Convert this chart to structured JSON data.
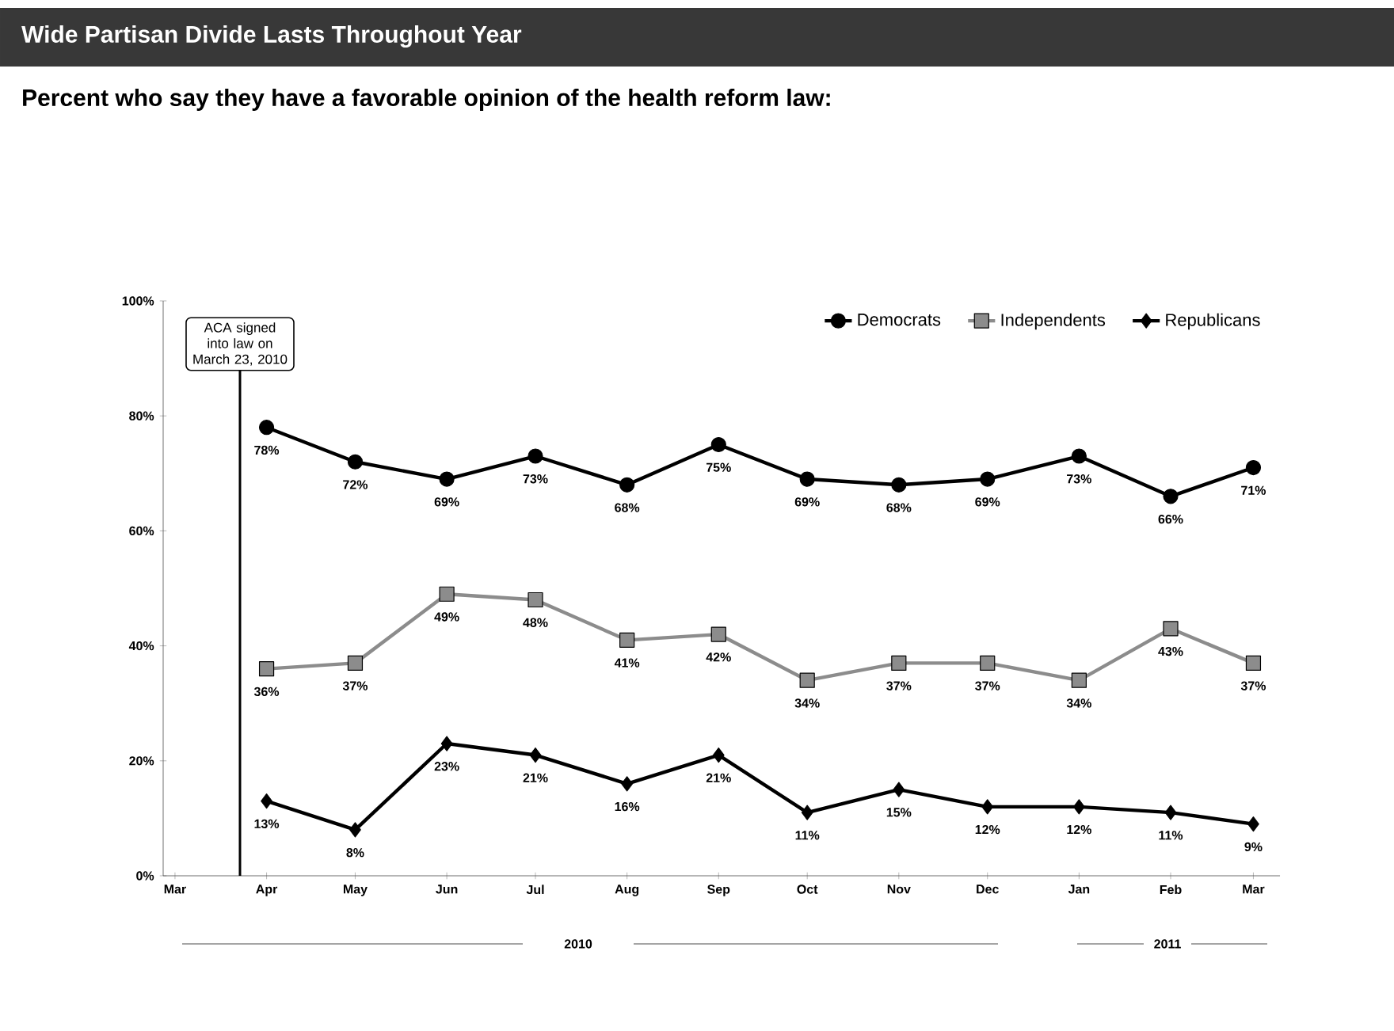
{
  "chart_data": {
    "type": "line",
    "title": "Wide Partisan Divide Lasts Throughout Year",
    "subtitle": "Percent who say they have a favorable opinion of the health reform law:",
    "x": [
      "2010-04",
      "2010-05",
      "2010-06",
      "2010-07",
      "2010-08",
      "2010-09",
      "2010-10",
      "2010-11",
      "2010-12",
      "2011-01",
      "2011-02",
      "2011-03"
    ],
    "xlim": [
      "2010-02-25",
      "2011-03-10"
    ],
    "xticks": [
      {
        "value": "2010-03",
        "label": "Mar"
      },
      {
        "value": "2010-04",
        "label": "Apr"
      },
      {
        "value": "2010-05",
        "label": "May"
      },
      {
        "value": "2010-06",
        "label": "Jun"
      },
      {
        "value": "2010-07",
        "label": "Jul"
      },
      {
        "value": "2010-08",
        "label": "Aug"
      },
      {
        "value": "2010-09",
        "label": "Sep"
      },
      {
        "value": "2010-10",
        "label": "Oct"
      },
      {
        "value": "2010-11",
        "label": "Nov"
      },
      {
        "value": "2010-12",
        "label": "Dec"
      },
      {
        "value": "2011-01",
        "label": "Jan"
      },
      {
        "value": "2011-02",
        "label": "Feb"
      },
      {
        "value": "2011-03",
        "label": "Mar"
      }
    ],
    "ylim": [
      0,
      100
    ],
    "yticks": [
      {
        "value": 0,
        "label": "0%"
      },
      {
        "value": 20,
        "label": "20%"
      },
      {
        "value": 40,
        "label": "40%"
      },
      {
        "value": 60,
        "label": "60%"
      },
      {
        "value": 80,
        "label": "80%"
      },
      {
        "value": 100,
        "label": "100%"
      }
    ],
    "series": [
      {
        "name": "Democrats",
        "color": "#000000",
        "marker": "circle",
        "values": [
          78,
          72,
          69,
          73,
          68,
          75,
          69,
          68,
          69,
          73,
          66,
          71
        ],
        "value_labels": [
          "78%",
          "72%",
          "69%",
          "73%",
          "68%",
          "75%",
          "69%",
          "68%",
          "69%",
          "73%",
          "66%",
          "71%"
        ]
      },
      {
        "name": "Independents",
        "color": "#8c8c8c",
        "marker": "square",
        "values": [
          36,
          37,
          49,
          48,
          41,
          42,
          34,
          37,
          37,
          34,
          43,
          37
        ],
        "value_labels": [
          "36%",
          "37%",
          "49%",
          "48%",
          "41%",
          "42%",
          "34%",
          "37%",
          "37%",
          "34%",
          "43%",
          "37%"
        ]
      },
      {
        "name": "Republicans",
        "color": "#000000",
        "marker": "diamond",
        "values": [
          13,
          8,
          23,
          21,
          16,
          21,
          11,
          15,
          12,
          12,
          11,
          9
        ],
        "value_labels": [
          "13%",
          "8%",
          "23%",
          "21%",
          "16%",
          "21%",
          "11%",
          "15%",
          "12%",
          "12%",
          "11%",
          "9%"
        ]
      }
    ],
    "ref_lines": [
      {
        "axis": "x",
        "value": "2010-03-23",
        "label": "ACA signed into law on March 23, 2010",
        "color": "#000000"
      }
    ],
    "annotations": [
      "2010",
      "2011"
    ],
    "legend": "top right",
    "grid": false
  }
}
